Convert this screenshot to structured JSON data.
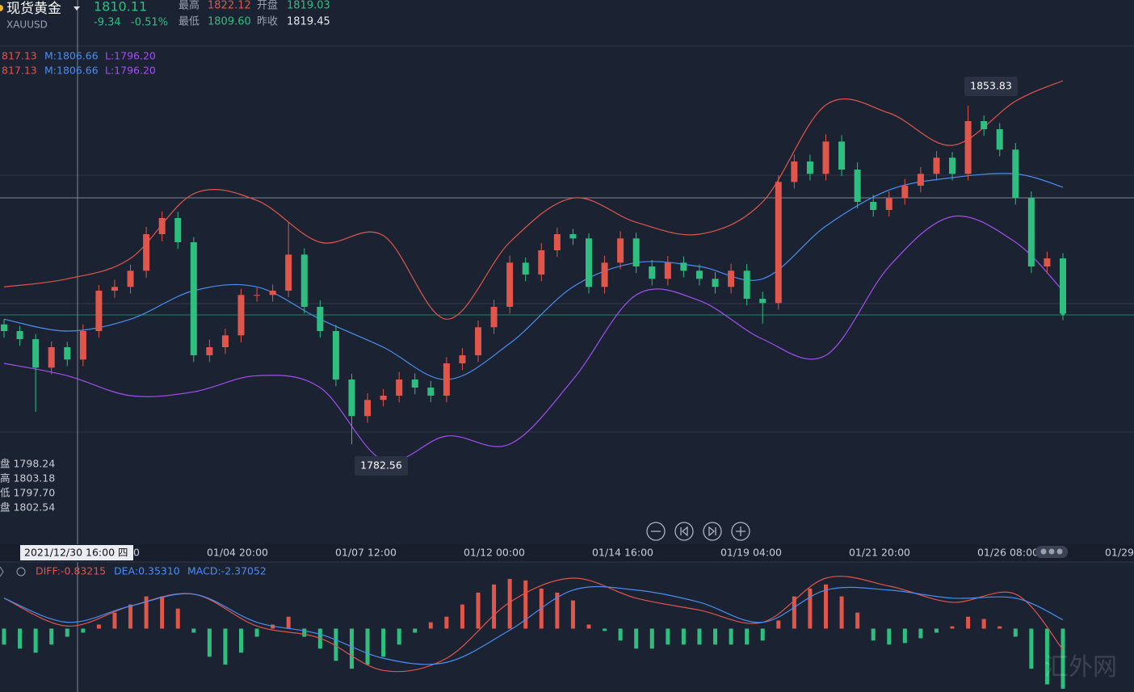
{
  "header": {
    "name": "现货黄金",
    "symbol": "XAUUSD",
    "price": "1810.11",
    "change": "-9.34",
    "change_pct": "-0.51%",
    "high_label": "最高",
    "high": "1822.12",
    "open_label": "开盘",
    "open": "1819.03",
    "low_label": "最低",
    "low": "1809.60",
    "prev_label": "昨收",
    "prev": "1819.45"
  },
  "band_legend": [
    {
      "u": "817.13",
      "m": "M:1806.66",
      "l": "L:1796.20"
    },
    {
      "u": "817.13",
      "m": "M:1806.66",
      "l": "L:1796.20"
    }
  ],
  "hover_info": [
    "盘 1798.24",
    "高 1803.18",
    "低 1797.70",
    "盘 1802.54"
  ],
  "crosshair_label": "2021/12/30 16:00 四",
  "watermark": "汇外网",
  "chart_data": [
    {
      "type": "candlestick",
      "ylim": [
        1762.2,
        1876.1
      ],
      "up_color": "#e0564b",
      "down_color": "#2ebf80",
      "x_labels": [
        "0",
        "01/04 20:00",
        "01/07 12:00",
        "01/12 00:00",
        "01/14 16:00",
        "01/19 04:00",
        "01/21 20:00",
        "01/26 08:00",
        "01/29"
      ],
      "candles": {
        "open": [
          1807.8,
          1806.4,
          1804.7,
          1798.7,
          1803,
          1800.4,
          1806.4,
          1814.9,
          1815.7,
          1819.1,
          1826.8,
          1830.2,
          1825.1,
          1801.3,
          1803,
          1805.5,
          1814,
          1814,
          1814.9,
          1822.5,
          1811.5,
          1806.4,
          1796.2,
          1788.5,
          1791.9,
          1792.8,
          1796.2,
          1794.5,
          1792.8,
          1799.6,
          1801.3,
          1807.2,
          1811.5,
          1820.8,
          1818.3,
          1823.4,
          1826.8,
          1825.9,
          1815.7,
          1820.8,
          1825.9,
          1820,
          1817.4,
          1820.8,
          1819.1,
          1817.4,
          1815.7,
          1819.1,
          1813.2,
          1812.3,
          1837.8,
          1842.1,
          1839.5,
          1846.3,
          1840.4,
          1833.6,
          1831.9,
          1834.4,
          1837,
          1839.5,
          1842.9,
          1839.5,
          1850.6,
          1848.9,
          1844.6,
          1834.4,
          1820,
          1821.7
        ],
        "high": [
          1808.9,
          1807.5,
          1805.8,
          1804.2,
          1804.1,
          1807.8,
          1816.1,
          1817.2,
          1820.4,
          1828.3,
          1831.6,
          1831.5,
          1826.2,
          1804.6,
          1806.9,
          1815.3,
          1815.5,
          1816.2,
          1829.3,
          1823.8,
          1812.9,
          1807.7,
          1797.4,
          1793.3,
          1794.2,
          1797.8,
          1797.5,
          1795.9,
          1800.9,
          1802.8,
          1808.6,
          1813,
          1822.3,
          1821.9,
          1824.9,
          1828.2,
          1827.9,
          1827,
          1822.3,
          1827.4,
          1827.1,
          1821.4,
          1822.2,
          1822.1,
          1820.4,
          1818.8,
          1820.6,
          1820.5,
          1814.7,
          1839.2,
          1843.6,
          1843.5,
          1847.8,
          1847.6,
          1841.9,
          1835.1,
          1835.8,
          1838.4,
          1840.9,
          1844.3,
          1844.1,
          1853.83,
          1851.8,
          1850.2,
          1846,
          1835.8,
          1823.1,
          1822.8
        ],
        "low": [
          1805,
          1803.3,
          1789.4,
          1797.3,
          1799,
          1799,
          1805,
          1813.4,
          1814.3,
          1817.6,
          1825.3,
          1823.7,
          1799.9,
          1799.9,
          1801.6,
          1804,
          1812.6,
          1812.6,
          1813.5,
          1810.1,
          1805,
          1794.8,
          1782.56,
          1787.1,
          1790.5,
          1791.4,
          1793.1,
          1791.4,
          1791.4,
          1798.2,
          1799.9,
          1805.8,
          1810.1,
          1816.9,
          1816.9,
          1822,
          1824.5,
          1814.3,
          1814.3,
          1819.4,
          1818.6,
          1816,
          1816,
          1817.7,
          1816,
          1814.3,
          1814.3,
          1811.8,
          1808,
          1810.9,
          1836.4,
          1838.1,
          1838.1,
          1839,
          1832.2,
          1830.5,
          1830.5,
          1833,
          1835.6,
          1838.1,
          1838.1,
          1838.1,
          1847.5,
          1843.2,
          1833,
          1818.6,
          1818.6,
          1808.7
        ],
        "close": [
          1806.4,
          1804.7,
          1798.7,
          1803,
          1800.4,
          1806.4,
          1814.9,
          1815.7,
          1819.1,
          1826.8,
          1830.2,
          1825.1,
          1801.3,
          1803,
          1805.5,
          1814,
          1814,
          1814.9,
          1822.5,
          1811.5,
          1806.4,
          1796.2,
          1788.5,
          1791.9,
          1792.8,
          1796.2,
          1794.5,
          1792.8,
          1799.6,
          1801.3,
          1807.2,
          1811.5,
          1820.8,
          1818.3,
          1823.4,
          1826.8,
          1825.9,
          1815.7,
          1820.8,
          1825.9,
          1820,
          1817.4,
          1820.8,
          1819.1,
          1817.4,
          1815.7,
          1819.1,
          1813.2,
          1812.3,
          1837.8,
          1842.1,
          1839.5,
          1846.3,
          1840.4,
          1833.6,
          1831.9,
          1834.4,
          1837,
          1839.5,
          1842.9,
          1839.5,
          1850.6,
          1848.9,
          1844.6,
          1834.4,
          1820,
          1821.7,
          1810.11
        ]
      },
      "series": [
        {
          "color": "#e0564b",
          "x": [
            0,
            4,
            8,
            12,
            16,
            20,
            24,
            28,
            32,
            36,
            40,
            44,
            48,
            52,
            56,
            60,
            64,
            67
          ],
          "values": [
            1815.7,
            1817.4,
            1821.7,
            1835.3,
            1833.9,
            1825.1,
            1826.5,
            1808.9,
            1825.1,
            1834.4,
            1829.3,
            1826.8,
            1833.6,
            1854.0,
            1852.3,
            1845.5,
            1854.8,
            1859.1
          ]
        },
        {
          "color": "#4a8ef0",
          "x": [
            0,
            4,
            8,
            12,
            16,
            20,
            24,
            28,
            32,
            36,
            40,
            44,
            48,
            52,
            56,
            60,
            64,
            67
          ],
          "values": [
            1808.9,
            1806.4,
            1808.9,
            1814.9,
            1815.7,
            1808.9,
            1803,
            1796.2,
            1803.8,
            1815.7,
            1820.8,
            1820,
            1817.4,
            1828.5,
            1836.1,
            1838.7,
            1839.5,
            1836.7
          ]
        },
        {
          "color": "#a24ff0",
          "x": [
            0,
            4,
            8,
            12,
            16,
            20,
            24,
            28,
            32,
            36,
            40,
            44,
            48,
            52,
            56,
            60,
            64,
            67
          ],
          "values": [
            1799.6,
            1797,
            1792.8,
            1793.6,
            1797,
            1794.5,
            1779.2,
            1784.3,
            1782.6,
            1796.2,
            1814,
            1812.8,
            1804.7,
            1801.3,
            1820,
            1830.5,
            1825.1,
            1814.9
          ]
        }
      ]
    },
    {
      "type": "macd",
      "ylim": [
        -2.5,
        2.5
      ],
      "up_color": "#e0564b",
      "down_color": "#2ebf80",
      "labels": [
        "DIFF:-0.83215",
        "DEA:0.35310",
        "MACD:-2.37052"
      ],
      "histogram": [
        -0.63,
        -0.79,
        -0.95,
        -0.63,
        -0.32,
        -0.16,
        0.16,
        0.63,
        0.95,
        1.27,
        1.27,
        0.79,
        -0.16,
        -1.11,
        -1.42,
        -0.95,
        -0.32,
        0.16,
        0.47,
        -0.32,
        -0.79,
        -1.27,
        -1.58,
        -1.42,
        -1.11,
        -0.63,
        -0.16,
        0.25,
        0.47,
        0.95,
        1.42,
        1.74,
        1.96,
        1.9,
        1.58,
        1.42,
        1.11,
        0.16,
        -0.09,
        -0.47,
        -0.79,
        -0.79,
        -0.63,
        -0.63,
        -0.63,
        -0.63,
        -0.63,
        -0.63,
        -0.47,
        0.32,
        1.27,
        1.58,
        1.74,
        1.27,
        0.63,
        -0.47,
        -0.63,
        -0.57,
        -0.38,
        -0.16,
        0.09,
        0.47,
        0.38,
        0.09,
        -0.32,
        -1.58,
        -2.2,
        -2.37
      ],
      "series": [
        {
          "color": "#e0564b",
          "x": [
            0,
            4,
            8,
            12,
            16,
            20,
            24,
            28,
            32,
            36,
            40,
            44,
            48,
            52,
            56,
            60,
            64,
            67
          ],
          "values": [
            1.2,
            0.1,
            0.89,
            1.36,
            0.1,
            -0.38,
            -1.65,
            -1.17,
            1.04,
            1.99,
            1.2,
            0.73,
            0.25,
            1.99,
            1.68,
            1.04,
            1.36,
            -0.83
          ]
        },
        {
          "color": "#4a8ef0",
          "x": [
            0,
            4,
            8,
            12,
            16,
            20,
            24,
            28,
            32,
            36,
            40,
            44,
            48,
            52,
            56,
            60,
            64,
            67
          ],
          "values": [
            1.2,
            0.25,
            0.89,
            1.36,
            0.25,
            -0.22,
            -1.17,
            -1.33,
            -0.06,
            1.52,
            1.52,
            1.04,
            0.25,
            1.52,
            1.52,
            1.2,
            1.2,
            0.35
          ]
        }
      ]
    }
  ]
}
